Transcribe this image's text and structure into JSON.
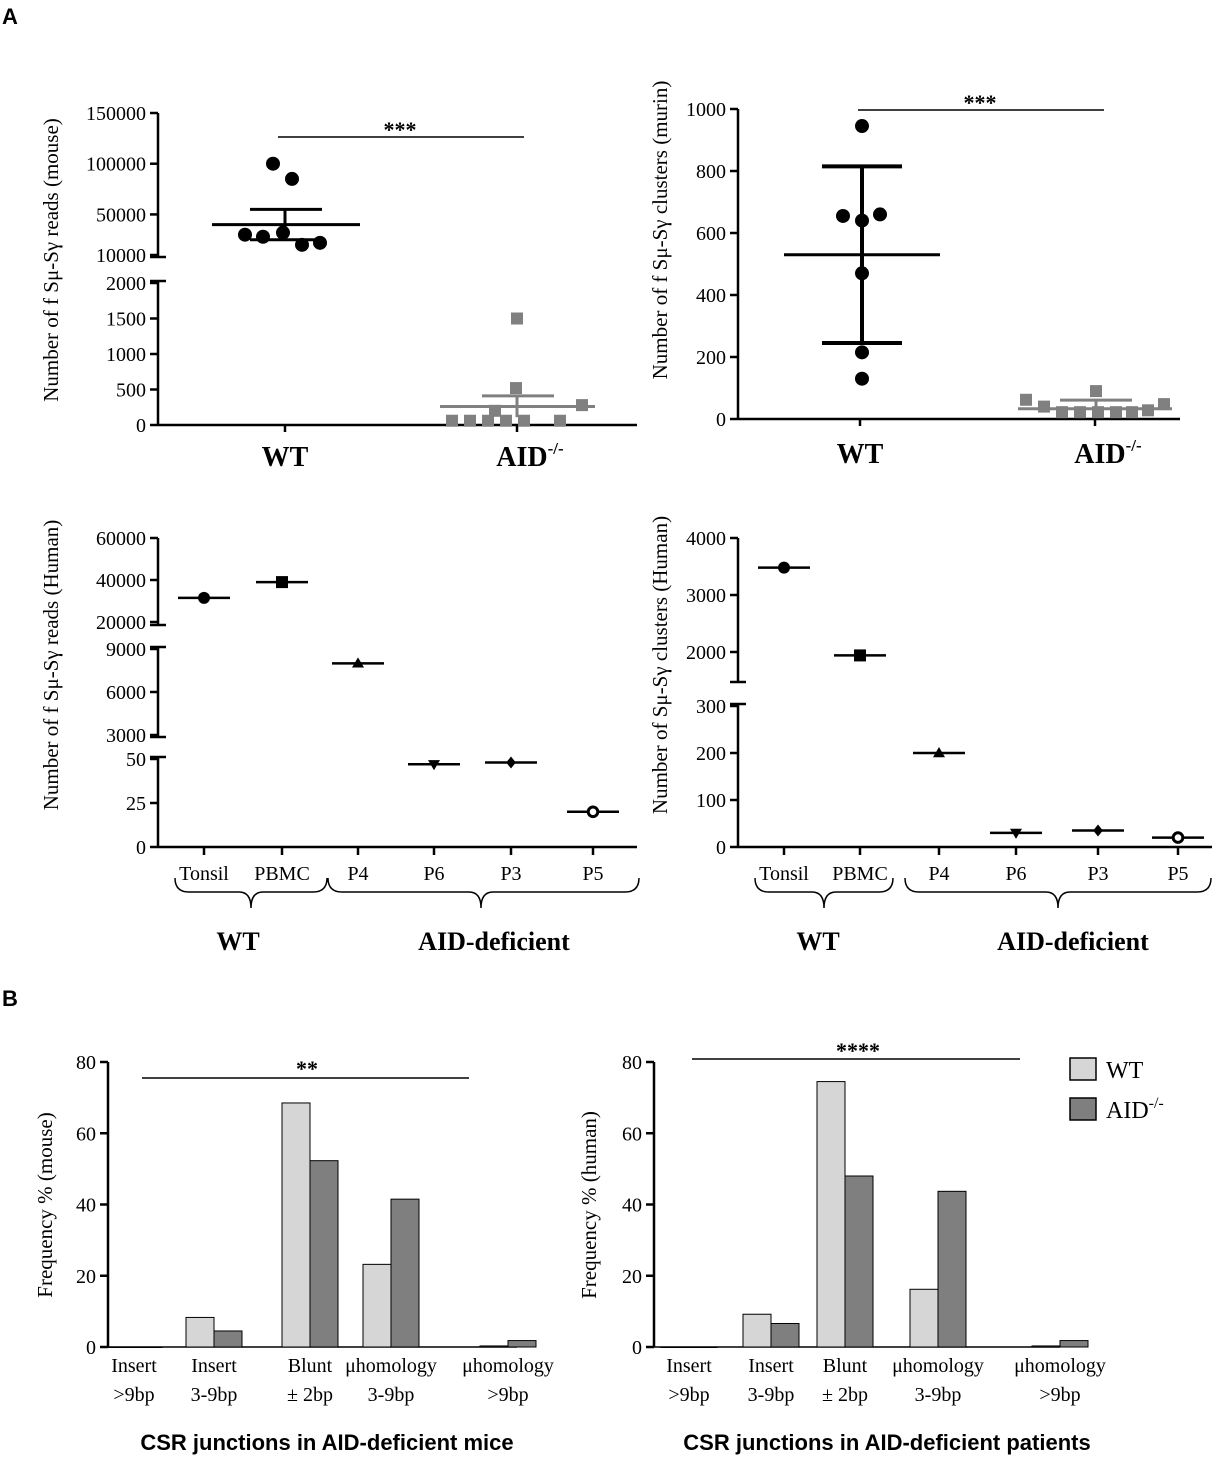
{
  "panels": {
    "A": "A",
    "B": "B"
  },
  "chart_data": [
    {
      "id": "mouse_reads",
      "type": "scatter",
      "ylabel": "Number of f Sμ-Sγ  reads (mouse)",
      "categories": [
        "WT",
        "AID-/-"
      ],
      "xlabel_display": {
        "WT": "WT",
        "AID": "AID",
        "AID_sup": "-/-"
      },
      "broken_axis": {
        "lower_range": [
          0,
          2000
        ],
        "upper_range": [
          10000,
          150000
        ]
      },
      "yticks_lower": [
        "0",
        "500",
        "1000",
        "1500",
        "2000"
      ],
      "yticks_upper": [
        "10000",
        "50000",
        "100000",
        "150000"
      ],
      "series": [
        {
          "name": "WT",
          "marker": "circle",
          "values": [
            100000,
            85000,
            30000,
            28000,
            32000,
            20000,
            20000
          ],
          "mean": 40000,
          "error": 15000
        },
        {
          "name": "AID-/-",
          "marker": "square",
          "values": [
            1500,
            520,
            200,
            280,
            60,
            60,
            60,
            60,
            60,
            60
          ],
          "mean": 260,
          "error": 150
        }
      ],
      "significance": "***"
    },
    {
      "id": "mouse_clusters",
      "type": "scatter",
      "ylabel": "Number of f Sμ-Sγ  clusters (murin)",
      "categories": [
        "WT",
        "AID-/-"
      ],
      "ylim": [
        0,
        1000
      ],
      "yticks": [
        "0",
        "200",
        "400",
        "600",
        "800",
        "1000"
      ],
      "series": [
        {
          "name": "WT",
          "marker": "circle",
          "values": [
            945,
            655,
            640,
            660,
            470,
            215,
            130
          ],
          "mean": 530,
          "error": 285
        },
        {
          "name": "AID-/-",
          "marker": "square",
          "values": [
            62,
            40,
            22,
            22,
            22,
            22,
            90,
            22,
            28,
            48
          ],
          "mean": 33,
          "error": 28
        }
      ],
      "significance": "***"
    },
    {
      "id": "human_reads",
      "type": "scatter",
      "ylabel": "Number of f Sμ-Sγ  reads (Human)",
      "categories": [
        "Tonsil",
        "PBMC",
        "P4",
        "P6",
        "P3",
        "P5"
      ],
      "groups": [
        {
          "label": "WT",
          "members": [
            "Tonsil",
            "PBMC"
          ]
        },
        {
          "label": "AID-deficient",
          "members": [
            "P4",
            "P6",
            "P3",
            "P5"
          ]
        }
      ],
      "broken_axis": {
        "lower_range": [
          0,
          50
        ],
        "middle_range": [
          3000,
          9000
        ],
        "upper_range": [
          20000,
          60000
        ]
      },
      "yticks_lower": [
        "0",
        "25",
        "50"
      ],
      "yticks_middle": [
        "3000",
        "6000",
        "9000"
      ],
      "yticks_upper": [
        "20000",
        "40000",
        "60000"
      ],
      "values": [
        31500,
        39000,
        8000,
        47,
        48,
        20
      ],
      "markers": [
        "circle",
        "square",
        "triangle-up",
        "triangle-down",
        "diamond",
        "open-circle"
      ]
    },
    {
      "id": "human_clusters",
      "type": "scatter",
      "ylabel": "Number of Sμ-Sγ  clusters (Human)",
      "categories": [
        "Tonsil",
        "PBMC",
        "P4",
        "P6",
        "P3",
        "P5"
      ],
      "groups": [
        {
          "label": "WT",
          "members": [
            "Tonsil",
            "PBMC"
          ]
        },
        {
          "label": "AID-deficient",
          "members": [
            "P4",
            "P6",
            "P3",
            "P5"
          ]
        }
      ],
      "broken_axis": {
        "lower_range": [
          0,
          300
        ],
        "upper_range": [
          1500,
          4000
        ]
      },
      "yticks_lower": [
        "0",
        "100",
        "200",
        "300"
      ],
      "yticks_upper": [
        "2000",
        "3000",
        "4000"
      ],
      "values": [
        3480,
        1940,
        200,
        30,
        35,
        20
      ],
      "markers": [
        "circle",
        "square",
        "triangle-up",
        "triangle-down",
        "diamond",
        "open-circle"
      ]
    },
    {
      "id": "csr_mice",
      "type": "bar",
      "title": "CSR junctions in AID-deficient mice",
      "ylabel": "Frequency % (mouse)",
      "ylim": [
        0,
        80
      ],
      "yticks": [
        "0",
        "20",
        "40",
        "60",
        "80"
      ],
      "categories": [
        [
          "Insert",
          ">9bp"
        ],
        [
          "Insert",
          "3-9bp"
        ],
        [
          "Blunt",
          "± 2bp"
        ],
        [
          "μhomology",
          "3-9bp"
        ],
        [
          "μhomology",
          ">9bp"
        ]
      ],
      "series": [
        {
          "name": "WT",
          "color": "#d6d6d6",
          "values": [
            0,
            8.3,
            68.5,
            23.2,
            0.3
          ]
        },
        {
          "name": "AID-/-",
          "color": "#7f7f7f",
          "values": [
            0,
            4.5,
            52.3,
            41.5,
            1.8
          ]
        }
      ],
      "significance": "**"
    },
    {
      "id": "csr_patients",
      "type": "bar",
      "title": "CSR junctions in AID-deficient patients",
      "ylabel": "Frequency % (human)",
      "ylim": [
        0,
        80
      ],
      "yticks": [
        "0",
        "20",
        "40",
        "60",
        "80"
      ],
      "categories": [
        [
          "Insert",
          ">9bp"
        ],
        [
          "Insert",
          "3-9bp"
        ],
        [
          "Blunt",
          "± 2bp"
        ],
        [
          "μhomology",
          "3-9bp"
        ],
        [
          "μhomology",
          ">9bp"
        ]
      ],
      "series": [
        {
          "name": "WT",
          "color": "#d6d6d6",
          "values": [
            0,
            9.2,
            74.5,
            16.2,
            0.3
          ]
        },
        {
          "name": "AID-/-",
          "color": "#7f7f7f",
          "values": [
            0,
            6.6,
            48.0,
            43.7,
            1.8
          ]
        }
      ],
      "significance": "****"
    }
  ],
  "legend": {
    "wt": "WT",
    "aid": "AID",
    "aid_sup": "-/-",
    "wt_color": "#d6d6d6",
    "aid_color": "#7f7f7f"
  }
}
